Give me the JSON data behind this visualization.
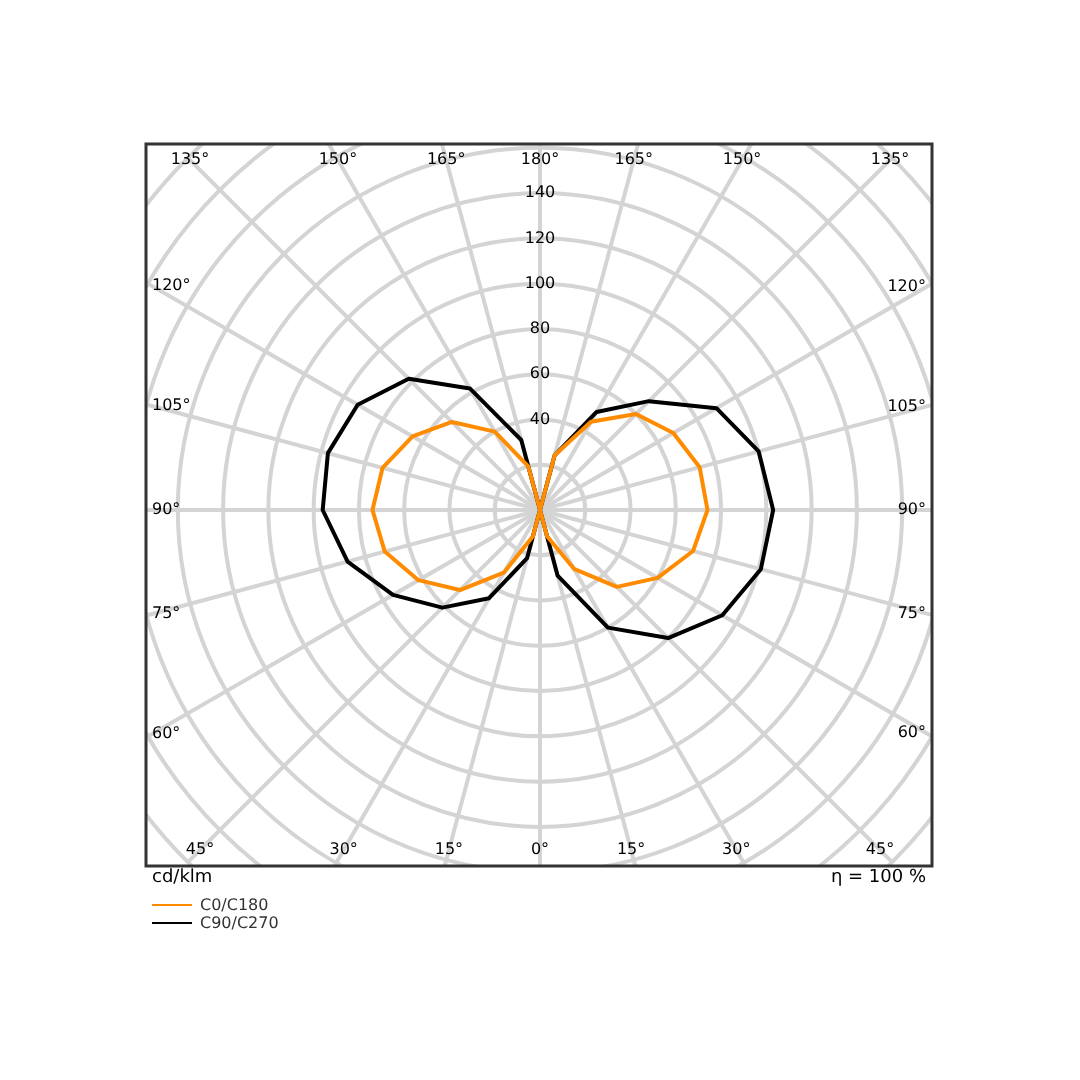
{
  "chart_data": {
    "type": "radar",
    "ylabel": "cd/klm",
    "annotations": [
      "η = 100 %"
    ],
    "categories": [
      "180°",
      "165°",
      "150°",
      "135°",
      "120°",
      "105°",
      "90°",
      "75°",
      "60°",
      "45°",
      "30°",
      "15°",
      "0°",
      "15°",
      "30°",
      "45°",
      "60°",
      "75°",
      "90°",
      "105°",
      "120°",
      "135°",
      "150°",
      "165°"
    ],
    "series": [
      {
        "name": "C0/C180",
        "color": "#ff8c00",
        "values": [
          0,
          25,
          45,
          60,
          68,
          73,
          74,
          70,
          60,
          48,
          30,
          12,
          0,
          12,
          32,
          50,
          62,
          71,
          74,
          72,
          65,
          55,
          40,
          20
        ]
      },
      {
        "name": "C90/C270",
        "color": "#000000",
        "values": [
          0,
          25,
          50,
          68,
          90,
          100,
          103,
          101,
          93,
          80,
          60,
          30,
          0,
          22,
          45,
          61,
          75,
          88,
          96,
          97,
          93,
          82,
          62,
          32
        ]
      }
    ],
    "ylim": [
      0,
      220
    ],
    "yticks": [
      40,
      60,
      80,
      100,
      120,
      140
    ],
    "grid": true,
    "legend": "bottom left",
    "marker": "none",
    "line_style": "solid"
  }
}
